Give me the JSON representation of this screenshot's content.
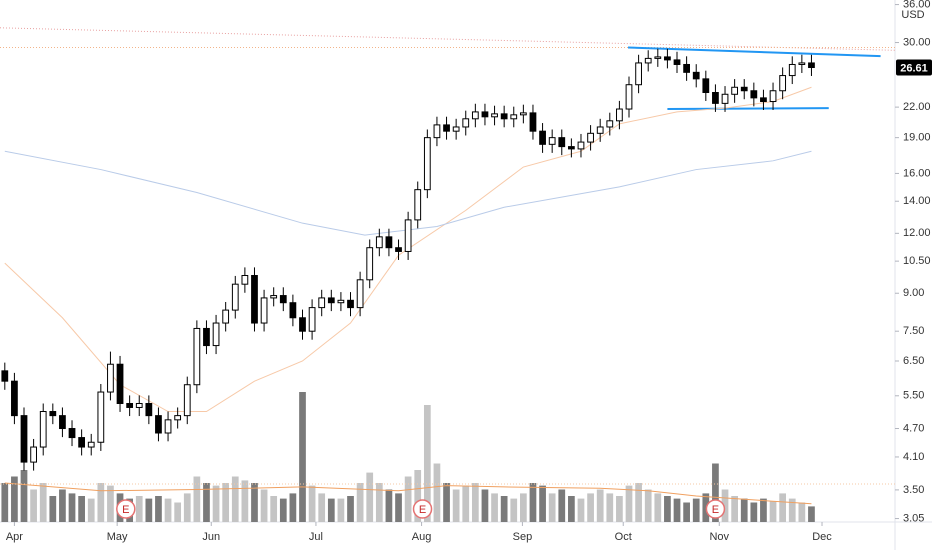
{
  "chart_data": {
    "type": "candlestick",
    "log_scale": true,
    "grid": false,
    "currency": "USD",
    "last_price": 26.61,
    "xlim": [
      -0.5,
      92.7
    ],
    "xticks": [
      {
        "value": 1.0,
        "label": "Apr"
      },
      {
        "value": 11.7,
        "label": "May"
      },
      {
        "value": 21.5,
        "label": "Jun"
      },
      {
        "value": 32.4,
        "label": "Jul"
      },
      {
        "value": 43.4,
        "label": "Aug"
      },
      {
        "value": 53.9,
        "label": "Sep"
      },
      {
        "value": 64.4,
        "label": "Oct"
      },
      {
        "value": 74.4,
        "label": "Nov"
      },
      {
        "value": 85.1,
        "label": "Dec"
      }
    ],
    "ylim": [
      3.0,
      36.8
    ],
    "yticks": [
      {
        "value": 3.05,
        "label": "3.05"
      },
      {
        "value": 3.5,
        "label": "3.50"
      },
      {
        "value": 4.1,
        "label": "4.10"
      },
      {
        "value": 4.7,
        "label": "4.70"
      },
      {
        "value": 5.5,
        "label": "5.50"
      },
      {
        "value": 6.5,
        "label": "6.50"
      },
      {
        "value": 7.5,
        "label": "7.50"
      },
      {
        "value": 9,
        "label": "9.00"
      },
      {
        "value": 10.5,
        "label": "10.50"
      },
      {
        "value": 12,
        "label": "12.00"
      },
      {
        "value": 14,
        "label": "14.00"
      },
      {
        "value": 16,
        "label": "16.00"
      },
      {
        "value": 19,
        "label": "19.00"
      },
      {
        "value": 22,
        "label": "22.00"
      },
      {
        "value": 30,
        "label": "30.00"
      },
      {
        "value": 36,
        "label": "36.00"
      }
    ],
    "up_color": "#ffffff",
    "down_color": "#000000",
    "open": [
      6.2,
      5.9,
      5.0,
      4.0,
      4.3,
      5.1,
      5.0,
      4.7,
      4.5,
      4.3,
      4.4,
      5.6,
      6.4,
      5.3,
      5.2,
      5.3,
      5.0,
      4.6,
      4.9,
      5.0,
      5.8,
      7.6,
      7.0,
      7.8,
      8.3,
      9.4,
      9.8,
      7.8,
      8.8,
      8.9,
      8.6,
      8.0,
      7.5,
      8.4,
      8.8,
      8.6,
      8.7,
      8.4,
      9.6,
      11.2,
      11.8,
      11.2,
      11.0,
      12.8,
      14.8,
      19.0,
      20.2,
      19.6,
      20.0,
      20.8,
      21.5,
      21.0,
      21.3,
      20.8,
      21.2,
      21.4,
      19.6,
      18.4,
      19.0,
      18.2,
      18.0,
      18.6,
      19.4,
      20.0,
      20.6,
      21.8,
      24.5,
      27.2,
      27.8,
      28.0,
      27.6,
      27.0,
      26.0,
      25.2,
      23.6,
      22.4,
      23.4,
      24.2,
      23.8,
      23.0,
      22.6,
      23.8,
      25.6,
      27.0,
      27.2
    ],
    "high": [
      6.45,
      6.14,
      5.2,
      4.47,
      5.3,
      5.3,
      5.2,
      4.89,
      4.68,
      4.58,
      5.82,
      6.8,
      6.66,
      5.51,
      5.51,
      5.51,
      5.2,
      5.1,
      5.2,
      6.03,
      7.9,
      7.9,
      8.11,
      8.63,
      9.78,
      10.19,
      10.19,
      9.15,
      9.26,
      9.26,
      8.94,
      8.32,
      8.74,
      9.15,
      9.15,
      9.05,
      9.05,
      9.98,
      11.65,
      12.27,
      12.27,
      11.65,
      13.31,
      15.39,
      19.76,
      21.01,
      21.01,
      20.8,
      21.63,
      22.36,
      22.36,
      22.15,
      22.15,
      22.05,
      22.26,
      22.26,
      20.38,
      19.76,
      19.76,
      18.93,
      19.34,
      20.18,
      20.8,
      21.42,
      22.67,
      25.48,
      28.29,
      28.91,
      29.12,
      29.12,
      28.7,
      28.08,
      27.04,
      26.21,
      24.54,
      24.34,
      25.17,
      25.17,
      24.75,
      23.92,
      24.75,
      26.62,
      28.08,
      28.29,
      28.29
    ],
    "low": [
      5.66,
      4.8,
      3.84,
      3.84,
      4.13,
      4.8,
      4.51,
      4.32,
      4.13,
      4.13,
      4.22,
      5.38,
      5.09,
      4.99,
      4.99,
      4.8,
      4.42,
      4.42,
      4.7,
      4.8,
      5.57,
      6.72,
      6.72,
      7.49,
      7.97,
      9.02,
      7.49,
      7.49,
      8.45,
      8.26,
      7.68,
      7.2,
      7.2,
      8.06,
      8.26,
      8.26,
      8.06,
      8.06,
      9.22,
      10.75,
      10.75,
      10.56,
      10.56,
      12.29,
      14.21,
      18.24,
      18.82,
      18.82,
      19.2,
      19.97,
      20.16,
      20.16,
      19.97,
      19.97,
      20.35,
      18.82,
      17.66,
      17.66,
      17.47,
      17.28,
      17.28,
      17.86,
      18.62,
      19.2,
      19.78,
      20.93,
      23.52,
      26.11,
      26.69,
      26.5,
      25.92,
      24.96,
      24.19,
      22.66,
      21.5,
      21.5,
      22.46,
      22.85,
      22.08,
      21.7,
      21.7,
      22.85,
      24.58,
      25.92,
      25.55
    ],
    "close": [
      5.9,
      5.0,
      4.0,
      4.3,
      5.1,
      5.0,
      4.7,
      4.5,
      4.3,
      4.4,
      5.6,
      6.4,
      5.3,
      5.2,
      5.3,
      5.0,
      4.6,
      4.9,
      5.0,
      5.8,
      7.6,
      7.0,
      7.8,
      8.3,
      9.4,
      9.8,
      7.8,
      8.8,
      8.9,
      8.6,
      8.0,
      7.5,
      8.4,
      8.8,
      8.6,
      8.7,
      8.4,
      9.6,
      11.2,
      11.8,
      11.2,
      11.0,
      12.8,
      14.8,
      19.0,
      20.2,
      19.6,
      20.0,
      20.8,
      21.5,
      21.0,
      21.3,
      20.8,
      21.2,
      21.4,
      19.6,
      18.4,
      19.0,
      18.2,
      18.0,
      18.6,
      19.4,
      20.0,
      20.6,
      21.8,
      24.5,
      27.2,
      27.8,
      28.0,
      27.6,
      27.0,
      26.0,
      25.2,
      23.6,
      22.4,
      23.4,
      24.2,
      23.8,
      23.0,
      22.6,
      23.8,
      25.6,
      27.0,
      27.2,
      26.61
    ],
    "volume": {
      "ylim": [
        0,
        100
      ],
      "up_color": "#c4c4c4",
      "down_color": "#7a7a7a",
      "values": [
        30,
        35,
        40,
        25,
        30,
        20,
        25,
        22,
        20,
        18,
        30,
        28,
        22,
        18,
        20,
        18,
        20,
        18,
        15,
        22,
        35,
        30,
        28,
        30,
        35,
        32,
        30,
        25,
        20,
        18,
        22,
        100,
        28,
        22,
        18,
        18,
        20,
        30,
        38,
        30,
        25,
        22,
        35,
        40,
        90,
        45,
        30,
        25,
        28,
        30,
        25,
        22,
        20,
        18,
        22,
        30,
        28,
        22,
        25,
        20,
        18,
        22,
        25,
        22,
        20,
        28,
        30,
        25,
        22,
        20,
        18,
        15,
        18,
        22,
        45,
        25,
        20,
        18,
        15,
        18,
        16,
        22,
        18,
        15,
        12
      ],
      "average": {
        "color": "#f0a060",
        "x": [
          0,
          10,
          20,
          31,
          41,
          46,
          52,
          62,
          67,
          72,
          80,
          84
        ],
        "values": [
          30,
          24,
          25,
          27,
          24,
          28,
          27,
          26,
          24,
          20,
          16,
          14
        ]
      }
    },
    "overlays": [
      {
        "color": "#f7c9a8",
        "x": [
          0,
          6,
          12,
          17,
          21,
          26,
          31,
          36,
          41,
          48,
          54,
          60,
          64,
          70,
          75,
          80,
          84
        ],
        "values": [
          10.4,
          8.0,
          5.8,
          5.1,
          5.1,
          5.9,
          6.5,
          7.8,
          10.8,
          13.4,
          16.5,
          17.8,
          20.3,
          21.5,
          21.9,
          22.6,
          24.2
        ]
      },
      {
        "color": "#b9cbe8",
        "x": [
          0,
          10,
          20,
          31,
          37.5,
          45,
          52,
          64,
          72,
          80,
          84
        ],
        "values": [
          17.8,
          16.3,
          14.6,
          12.6,
          11.9,
          12.4,
          13.6,
          15.0,
          16.3,
          17.0,
          17.8
        ]
      }
    ],
    "lines": [
      {
        "color": "#e8a0a0",
        "style": "dotted",
        "x": [
          -0.5,
          92.7
        ],
        "values": [
          32.2,
          28.9
        ]
      },
      {
        "color": "#f2b48a",
        "style": "dotted",
        "x": [
          -0.5,
          92.7
        ],
        "values": [
          29.3,
          29.3
        ]
      },
      {
        "color": "#f5c9a6",
        "style": "dotted",
        "x": [
          -0.5,
          92.7
        ],
        "values": [
          3.6,
          3.6
        ]
      },
      {
        "color": "#2196f3",
        "style": "solid",
        "x": [
          64.9,
          91.2
        ],
        "values": [
          29.3,
          28.1
        ]
      },
      {
        "color": "#2196f3",
        "style": "solid",
        "x": [
          69,
          85.8
        ],
        "values": [
          21.8,
          21.9
        ]
      }
    ],
    "events": [
      {
        "x": 12.6,
        "label": "E"
      },
      {
        "x": 43.5,
        "label": "E"
      },
      {
        "x": 74.0,
        "label": "E"
      }
    ]
  }
}
